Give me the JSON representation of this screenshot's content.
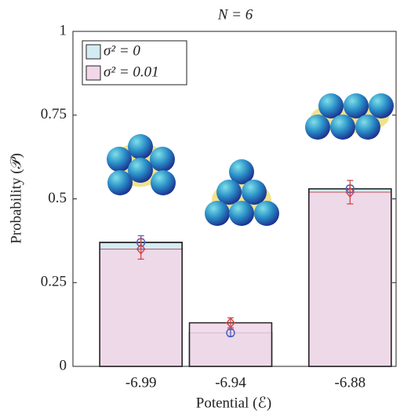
{
  "chart_data": {
    "type": "bar",
    "title": "N = 6",
    "x_label": "Potential (ℰ)",
    "y_label": "Probability (𝒫)",
    "categories": [
      "-6.99",
      "-6.94",
      "-6.88"
    ],
    "series": [
      {
        "name": "σ² = 0",
        "color": "#d3ecf2",
        "marker_color": "#4a63c4",
        "values": [
          0.37,
          0.1,
          0.53
        ],
        "errors": [
          0.02,
          0.01,
          0.01
        ]
      },
      {
        "name": "σ² = 0.01",
        "color": "#f1d7e8",
        "marker_color": "#d0484a",
        "values": [
          0.35,
          0.13,
          0.52
        ],
        "errors": [
          0.03,
          0.015,
          0.035
        ]
      }
    ],
    "ylim": [
      0,
      1
    ],
    "yticks": [
      0,
      0.25,
      0.5,
      0.75,
      1
    ],
    "legend": "upper left"
  }
}
